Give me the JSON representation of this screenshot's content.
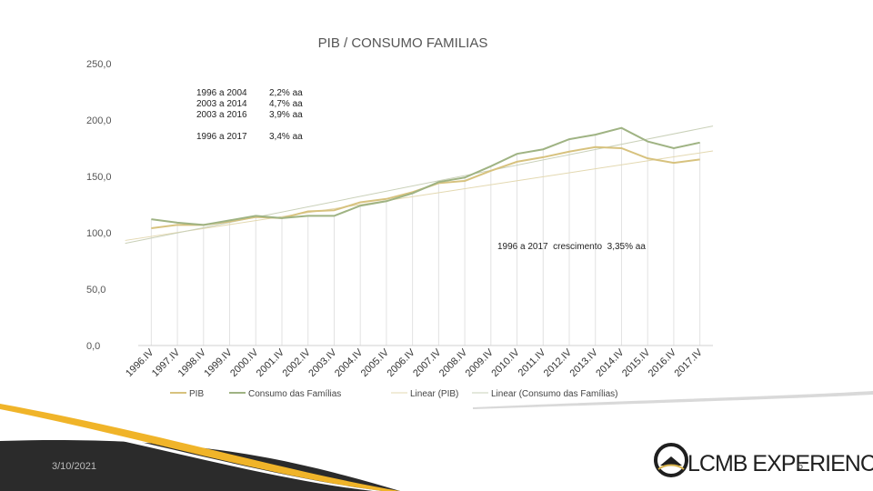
{
  "slide": {
    "date": "3/10/2021",
    "page_number": "6",
    "logo_text": "LCMB EXPERIENCE"
  },
  "chart_data": {
    "type": "line",
    "title": "PIB / CONSUMO FAMILIAS",
    "categories": [
      "1996.IV",
      "1997.IV",
      "1998.IV",
      "1999.IV",
      "2000.IV",
      "2001.IV",
      "2002.IV",
      "2003.IV",
      "2004.IV",
      "2005.IV",
      "2006.IV",
      "2007.IV",
      "2008.IV",
      "2009.IV",
      "2010.IV",
      "2011.IV",
      "2012.IV",
      "2013.IV",
      "2014.IV",
      "2015.IV",
      "2016.IV",
      "2017.IV"
    ],
    "yticks": [
      "250,0",
      "200,0",
      "150,0",
      "100,0",
      "50,0",
      "0,0"
    ],
    "ylim": [
      0,
      250
    ],
    "grid": "vertical",
    "legend_position": "bottom",
    "series": [
      {
        "name": "PIB",
        "color": "#d7c27e",
        "style": "solid",
        "values": [
          104,
          107,
          107,
          110,
          114,
          113,
          119,
          120,
          127,
          130,
          136,
          144,
          146,
          155,
          163,
          167,
          172,
          176,
          175,
          166,
          162,
          165
        ]
      },
      {
        "name": "Consumo das Famílias",
        "color": "#9fb383",
        "style": "solid",
        "values": [
          112,
          109,
          107,
          111,
          115,
          113,
          115,
          115,
          124,
          128,
          135,
          145,
          149,
          159,
          170,
          174,
          183,
          187,
          193,
          181,
          175,
          180
        ]
      },
      {
        "name": "Linear (PIB)",
        "color": "#e3d8b0",
        "style": "trend",
        "values": [
          95,
          98.6,
          102.2,
          105.8,
          109.4,
          113.1,
          116.7,
          120.3,
          123.9,
          127.5,
          131.1,
          134.7,
          138.3,
          141.9,
          145.5,
          149.2,
          152.8,
          156.4,
          160,
          163.6,
          167.2,
          170.8
        ]
      },
      {
        "name": "Linear (Consumo das Famílias)",
        "color": "#c9d0b8",
        "style": "trend",
        "values": [
          93,
          97.7,
          102.5,
          107.2,
          111.9,
          116.6,
          121.4,
          126.1,
          130.8,
          135.6,
          140.3,
          145,
          149.7,
          154.5,
          159.2,
          163.9,
          168.7,
          173.4,
          178.1,
          182.8,
          187.6,
          192.3
        ]
      }
    ],
    "annotations": {
      "growth_table": [
        {
          "period": "1996 a 2004",
          "rate": "2,2% aa"
        },
        {
          "period": "2003 a 2014",
          "rate": "4,7% aa"
        },
        {
          "period": "2003 a 2016",
          "rate": "3,9% aa"
        },
        {
          "period": "1996 a 2017",
          "rate": "3,4% aa"
        }
      ],
      "growth_note": "1996 a 2017  crescimento  3,35% aa"
    }
  }
}
